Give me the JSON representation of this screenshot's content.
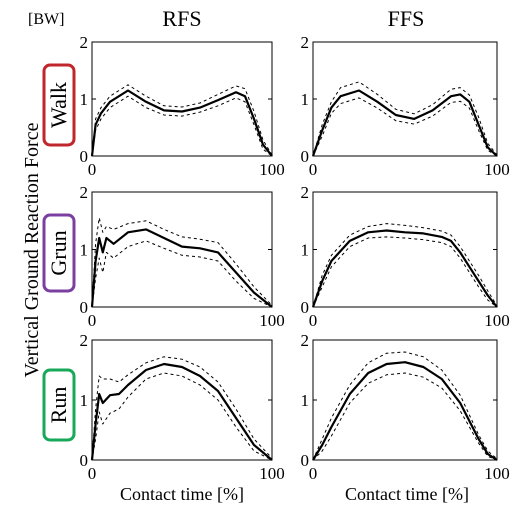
{
  "figure": {
    "unit_label": "[BW]",
    "column_titles": [
      "RFS",
      "FFS"
    ],
    "y_label": "Vertical Ground Reaction Force",
    "x_label": "Contact time [%]",
    "rows": [
      {
        "label": "Walk",
        "color": "#c0262c"
      },
      {
        "label": "Grun",
        "color": "#7b3fa0"
      },
      {
        "label": "Run",
        "color": "#18a85a"
      }
    ]
  },
  "chart_data": [
    {
      "type": "line",
      "row": "Walk",
      "column": "RFS",
      "xlim": [
        0,
        100
      ],
      "ylim": [
        0,
        2
      ],
      "x_ticks": [
        "0",
        "100"
      ],
      "y_ticks": [
        "0",
        "1",
        "2"
      ],
      "legend": "none",
      "x": [
        0,
        2,
        5,
        10,
        20,
        30,
        40,
        50,
        60,
        70,
        80,
        85,
        90,
        95,
        100
      ],
      "series": [
        {
          "style": "mean",
          "values": [
            0.0,
            0.55,
            0.75,
            0.95,
            1.15,
            0.95,
            0.8,
            0.78,
            0.85,
            0.98,
            1.12,
            1.05,
            0.65,
            0.2,
            0.0
          ]
        },
        {
          "style": "+sd",
          "values": [
            0.0,
            0.65,
            0.85,
            1.05,
            1.25,
            1.05,
            0.88,
            0.86,
            0.93,
            1.08,
            1.23,
            1.18,
            0.78,
            0.28,
            0.02
          ]
        },
        {
          "style": "-sd",
          "values": [
            0.0,
            0.45,
            0.65,
            0.85,
            1.05,
            0.85,
            0.72,
            0.7,
            0.77,
            0.88,
            1.02,
            0.95,
            0.55,
            0.12,
            0.0
          ]
        }
      ]
    },
    {
      "type": "line",
      "row": "Walk",
      "column": "FFS",
      "xlim": [
        0,
        100
      ],
      "ylim": [
        0,
        2
      ],
      "x_ticks": [
        "0",
        "100"
      ],
      "y_ticks": [
        "0",
        "1",
        "2"
      ],
      "legend": "none",
      "x": [
        0,
        5,
        10,
        15,
        25,
        35,
        45,
        55,
        65,
        75,
        80,
        85,
        90,
        95,
        100
      ],
      "series": [
        {
          "style": "mean",
          "values": [
            0.0,
            0.45,
            0.85,
            1.05,
            1.15,
            0.95,
            0.72,
            0.65,
            0.8,
            1.05,
            1.08,
            0.95,
            0.55,
            0.15,
            0.0
          ]
        },
        {
          "style": "+sd",
          "values": [
            0.0,
            0.55,
            0.95,
            1.2,
            1.3,
            1.08,
            0.82,
            0.74,
            0.9,
            1.17,
            1.2,
            1.07,
            0.68,
            0.22,
            0.02
          ]
        },
        {
          "style": "-sd",
          "values": [
            0.0,
            0.35,
            0.75,
            0.92,
            1.02,
            0.84,
            0.62,
            0.56,
            0.7,
            0.94,
            0.96,
            0.84,
            0.45,
            0.1,
            0.0
          ]
        }
      ]
    },
    {
      "type": "line",
      "row": "Grun",
      "column": "RFS",
      "xlim": [
        0,
        100
      ],
      "ylim": [
        0,
        2
      ],
      "x_ticks": [
        "0",
        "100"
      ],
      "y_ticks": [
        "0",
        "1",
        "2"
      ],
      "legend": "none",
      "x": [
        0,
        2,
        4,
        6,
        8,
        12,
        20,
        30,
        40,
        50,
        60,
        70,
        80,
        90,
        100
      ],
      "series": [
        {
          "style": "mean",
          "values": [
            0.0,
            0.8,
            1.2,
            0.95,
            1.2,
            1.1,
            1.3,
            1.35,
            1.2,
            1.05,
            1.02,
            0.95,
            0.6,
            0.25,
            0.0
          ]
        },
        {
          "style": "+sd",
          "values": [
            0.0,
            1.1,
            1.55,
            1.3,
            1.4,
            1.35,
            1.45,
            1.5,
            1.35,
            1.22,
            1.18,
            1.12,
            0.75,
            0.35,
            0.03
          ]
        },
        {
          "style": "-sd",
          "values": [
            0.0,
            0.5,
            0.85,
            0.6,
            0.95,
            0.85,
            1.05,
            1.15,
            1.02,
            0.9,
            0.87,
            0.8,
            0.45,
            0.15,
            0.0
          ]
        }
      ]
    },
    {
      "type": "line",
      "row": "Grun",
      "column": "FFS",
      "xlim": [
        0,
        100
      ],
      "ylim": [
        0,
        2
      ],
      "x_ticks": [
        "0",
        "100"
      ],
      "y_ticks": [
        "0",
        "1",
        "2"
      ],
      "legend": "none",
      "x": [
        0,
        5,
        10,
        20,
        30,
        40,
        50,
        60,
        70,
        75,
        80,
        85,
        90,
        95,
        100
      ],
      "series": [
        {
          "style": "mean",
          "values": [
            0.0,
            0.45,
            0.8,
            1.15,
            1.3,
            1.33,
            1.3,
            1.28,
            1.22,
            1.15,
            0.95,
            0.7,
            0.45,
            0.2,
            0.0
          ]
        },
        {
          "style": "+sd",
          "values": [
            0.0,
            0.55,
            0.9,
            1.25,
            1.4,
            1.45,
            1.42,
            1.38,
            1.32,
            1.25,
            1.05,
            0.8,
            0.55,
            0.28,
            0.02
          ]
        },
        {
          "style": "-sd",
          "values": [
            0.0,
            0.35,
            0.7,
            1.05,
            1.2,
            1.22,
            1.2,
            1.17,
            1.12,
            1.05,
            0.85,
            0.6,
            0.35,
            0.12,
            0.0
          ]
        }
      ]
    },
    {
      "type": "line",
      "row": "Run",
      "column": "RFS",
      "xlim": [
        0,
        100
      ],
      "ylim": [
        0,
        2
      ],
      "x_ticks": [
        "0",
        "100"
      ],
      "y_ticks": [
        "0",
        "1",
        "2"
      ],
      "legend": "none",
      "x": [
        0,
        2,
        4,
        6,
        10,
        15,
        20,
        30,
        40,
        50,
        60,
        70,
        80,
        90,
        100
      ],
      "series": [
        {
          "style": "mean",
          "values": [
            0.0,
            0.6,
            1.1,
            0.95,
            1.08,
            1.1,
            1.25,
            1.5,
            1.6,
            1.55,
            1.4,
            1.15,
            0.7,
            0.25,
            0.0
          ]
        },
        {
          "style": "+sd",
          "values": [
            0.0,
            0.85,
            1.4,
            1.35,
            1.35,
            1.3,
            1.42,
            1.62,
            1.72,
            1.68,
            1.55,
            1.3,
            0.85,
            0.35,
            0.03
          ]
        },
        {
          "style": "-sd",
          "values": [
            0.0,
            0.35,
            0.8,
            0.6,
            0.78,
            0.85,
            1.05,
            1.35,
            1.45,
            1.4,
            1.25,
            1.0,
            0.55,
            0.15,
            0.0
          ]
        }
      ]
    },
    {
      "type": "line",
      "row": "Run",
      "column": "FFS",
      "xlim": [
        0,
        100
      ],
      "ylim": [
        0,
        2
      ],
      "x_ticks": [
        "0",
        "100"
      ],
      "y_ticks": [
        "0",
        "1",
        "2"
      ],
      "legend": "none",
      "x": [
        0,
        5,
        10,
        20,
        30,
        40,
        50,
        60,
        70,
        80,
        85,
        90,
        95,
        100
      ],
      "series": [
        {
          "style": "mean",
          "values": [
            0.0,
            0.25,
            0.55,
            1.1,
            1.45,
            1.6,
            1.63,
            1.55,
            1.35,
            0.95,
            0.65,
            0.35,
            0.1,
            0.0
          ]
        },
        {
          "style": "+sd",
          "values": [
            0.0,
            0.35,
            0.7,
            1.25,
            1.62,
            1.78,
            1.8,
            1.72,
            1.5,
            1.08,
            0.75,
            0.42,
            0.15,
            0.02
          ]
        },
        {
          "style": "-sd",
          "values": [
            0.0,
            0.15,
            0.4,
            0.95,
            1.28,
            1.42,
            1.45,
            1.38,
            1.2,
            0.82,
            0.55,
            0.28,
            0.06,
            0.0
          ]
        }
      ]
    }
  ]
}
